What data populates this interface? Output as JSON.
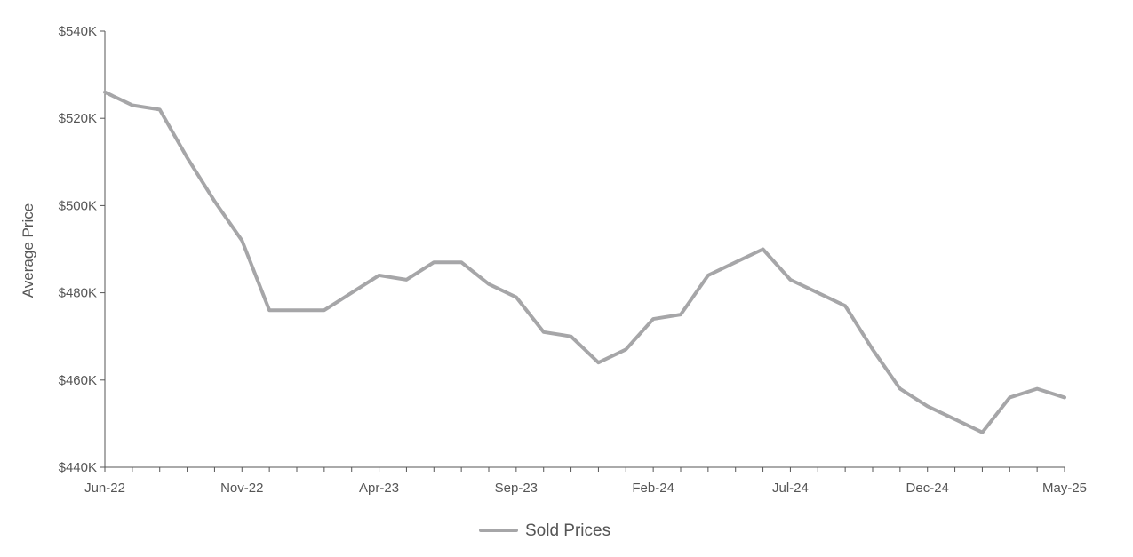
{
  "chart_data": {
    "type": "line",
    "title": "",
    "xlabel": "",
    "ylabel": "Average Price",
    "ylim": [
      440000,
      540000
    ],
    "y_ticks": [
      {
        "value": 440000,
        "label": "$440K"
      },
      {
        "value": 460000,
        "label": "$460K"
      },
      {
        "value": 480000,
        "label": "$480K"
      },
      {
        "value": 500000,
        "label": "$500K"
      },
      {
        "value": 520000,
        "label": "$520K"
      },
      {
        "value": 540000,
        "label": "$540K"
      }
    ],
    "x": [
      "2022-06",
      "2022-07",
      "2022-08",
      "2022-09",
      "2022-10",
      "2022-11",
      "2022-12",
      "2023-01",
      "2023-02",
      "2023-03",
      "2023-04",
      "2023-05",
      "2023-06",
      "2023-07",
      "2023-08",
      "2023-09",
      "2023-10",
      "2023-11",
      "2023-12",
      "2024-01",
      "2024-02",
      "2024-03",
      "2024-04",
      "2024-05",
      "2024-06",
      "2024-07",
      "2024-08",
      "2024-09",
      "2024-10",
      "2024-11",
      "2024-12",
      "2025-01",
      "2025-02",
      "2025-03",
      "2025-04",
      "2025-05"
    ],
    "x_tick_labels": [
      {
        "x": "2022-06",
        "label": "Jun-22"
      },
      {
        "x": "2022-11",
        "label": "Nov-22"
      },
      {
        "x": "2023-04",
        "label": "Apr-23"
      },
      {
        "x": "2023-09",
        "label": "Sep-23"
      },
      {
        "x": "2024-02",
        "label": "Feb-24"
      },
      {
        "x": "2024-07",
        "label": "Jul-24"
      },
      {
        "x": "2024-12",
        "label": "Dec-24"
      },
      {
        "x": "2025-05",
        "label": "May-25"
      }
    ],
    "series": [
      {
        "name": "Sold Prices",
        "color": "#a6a6a8",
        "values": [
          526000,
          523000,
          522000,
          511000,
          501000,
          492000,
          476000,
          476000,
          476000,
          480000,
          484000,
          483000,
          487000,
          487000,
          482000,
          479000,
          471000,
          470000,
          464000,
          467000,
          474000,
          475000,
          484000,
          487000,
          490000,
          483000,
          480000,
          477000,
          467000,
          458000,
          454000,
          451000,
          448000,
          456000,
          458000,
          456000
        ]
      }
    ],
    "grid": false,
    "legend_position": "bottom"
  }
}
